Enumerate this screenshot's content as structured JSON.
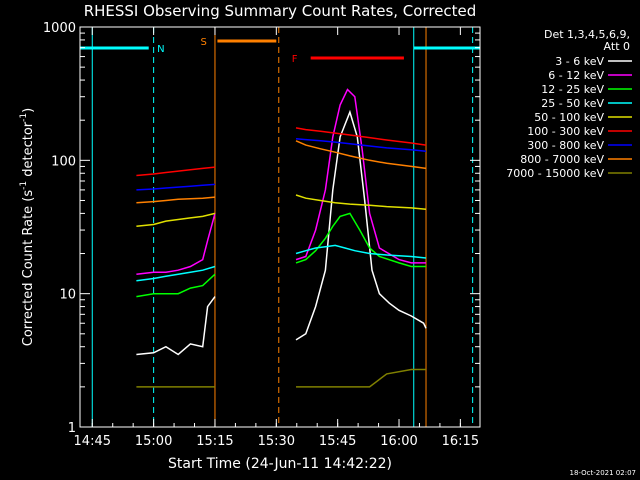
{
  "chart_data": {
    "type": "line",
    "title": "RHESSI Observing Summary Count Rates, Corrected",
    "xlabel": "Start Time (24-Jun-11 14:42:22)",
    "ylabel_main": "Corrected Count Rate (s",
    "ylabel_exp1": "-1",
    "ylabel_mid": " detector",
    "ylabel_exp2": "-1",
    "ylabel_end": ")",
    "yscale": "log",
    "ylim": [
      1,
      1000
    ],
    "xlim_minutes": [
      14.7,
      16.33
    ],
    "x_ticks": [
      {
        "t": 14.75,
        "label": "14:45"
      },
      {
        "t": 15.0,
        "label": "15:00"
      },
      {
        "t": 15.25,
        "label": "15:15"
      },
      {
        "t": 15.5,
        "label": "15:30"
      },
      {
        "t": 15.75,
        "label": "15:45"
      },
      {
        "t": 16.0,
        "label": "16:00"
      },
      {
        "t": 16.25,
        "label": "16:15"
      }
    ],
    "y_ticks": [
      {
        "v": 1,
        "label": "1"
      },
      {
        "v": 10,
        "label": "10"
      },
      {
        "v": 100,
        "label": "100"
      },
      {
        "v": 1000,
        "label": "1000"
      }
    ],
    "legend_header1": "Det 1,3,4,5,6,9,",
    "legend_header2": "Att 0",
    "legend_position": "right",
    "timestamp": "18-Oct-2021 02:07",
    "flags": [
      {
        "label": "N",
        "color": "#00ffff",
        "segments": [
          [
            14.7,
            14.98
          ],
          [
            16.06,
            16.33
          ]
        ]
      },
      {
        "label": "S",
        "color": "#ff8000",
        "segments": [
          [
            15.26,
            15.5
          ]
        ]
      },
      {
        "label": "F",
        "color": "#ff0000",
        "segments": [
          [
            15.64,
            16.02
          ]
        ]
      }
    ],
    "markers": [
      {
        "t": 14.75,
        "color": "#00ffff",
        "style": "solid"
      },
      {
        "t": 15.0,
        "color": "#00ffff",
        "style": "dashed"
      },
      {
        "t": 15.25,
        "color": "#ff8000",
        "style": "solid"
      },
      {
        "t": 15.51,
        "color": "#ff8000",
        "style": "dashed"
      },
      {
        "t": 16.06,
        "color": "#00ffff",
        "style": "solid"
      },
      {
        "t": 16.11,
        "color": "#ff8000",
        "style": "solid"
      },
      {
        "t": 16.3,
        "color": "#00ffff",
        "style": "dashed"
      }
    ],
    "series": [
      {
        "name": "3 - 6 keV",
        "color": "#ffffff",
        "segments": [
          [
            [
              14.93,
              3.5
            ],
            [
              15.0,
              3.6
            ],
            [
              15.05,
              4.0
            ],
            [
              15.1,
              3.5
            ],
            [
              15.15,
              4.2
            ],
            [
              15.2,
              4.0
            ],
            [
              15.22,
              8.0
            ],
            [
              15.25,
              9.5
            ]
          ],
          [
            [
              15.58,
              4.5
            ],
            [
              15.62,
              5.0
            ],
            [
              15.66,
              8.0
            ],
            [
              15.7,
              15.0
            ],
            [
              15.73,
              60.0
            ],
            [
              15.76,
              150.0
            ],
            [
              15.8,
              230.0
            ],
            [
              15.83,
              150.0
            ],
            [
              15.86,
              50.0
            ],
            [
              15.89,
              15.0
            ],
            [
              15.92,
              10.0
            ],
            [
              15.96,
              8.5
            ],
            [
              16.0,
              7.5
            ],
            [
              16.05,
              6.8
            ],
            [
              16.1,
              6.0
            ],
            [
              16.11,
              5.5
            ]
          ]
        ]
      },
      {
        "name": "6 - 12 keV",
        "color": "#ff00ff",
        "segments": [
          [
            [
              14.93,
              14.0
            ],
            [
              15.0,
              14.5
            ],
            [
              15.05,
              14.5
            ],
            [
              15.1,
              15.0
            ],
            [
              15.15,
              16.0
            ],
            [
              15.2,
              18.0
            ],
            [
              15.22,
              25.0
            ],
            [
              15.25,
              40.0
            ]
          ],
          [
            [
              15.58,
              18.0
            ],
            [
              15.62,
              19.0
            ],
            [
              15.66,
              30.0
            ],
            [
              15.7,
              60.0
            ],
            [
              15.73,
              150.0
            ],
            [
              15.76,
              260.0
            ],
            [
              15.79,
              340.0
            ],
            [
              15.82,
              300.0
            ],
            [
              15.85,
              120.0
            ],
            [
              15.88,
              40.0
            ],
            [
              15.92,
              22.0
            ],
            [
              16.0,
              18.0
            ],
            [
              16.05,
              17.0
            ],
            [
              16.11,
              17.0
            ]
          ]
        ]
      },
      {
        "name": "12 - 25 keV",
        "color": "#00ff00",
        "segments": [
          [
            [
              14.93,
              9.5
            ],
            [
              15.0,
              10.0
            ],
            [
              15.05,
              10.0
            ],
            [
              15.1,
              10.0
            ],
            [
              15.15,
              11.0
            ],
            [
              15.2,
              11.5
            ],
            [
              15.25,
              14.0
            ]
          ],
          [
            [
              15.58,
              17.0
            ],
            [
              15.62,
              18.0
            ],
            [
              15.66,
              21.0
            ],
            [
              15.7,
              26.0
            ],
            [
              15.73,
              32.0
            ],
            [
              15.76,
              38.0
            ],
            [
              15.8,
              40.0
            ],
            [
              15.84,
              30.0
            ],
            [
              15.88,
              22.0
            ],
            [
              15.92,
              19.0
            ],
            [
              16.0,
              17.0
            ],
            [
              16.05,
              16.0
            ],
            [
              16.11,
              16.0
            ]
          ]
        ]
      },
      {
        "name": "25 - 50 keV",
        "color": "#00ffff",
        "segments": [
          [
            [
              14.93,
              12.5
            ],
            [
              15.0,
              13.0
            ],
            [
              15.05,
              13.5
            ],
            [
              15.1,
              14.0
            ],
            [
              15.15,
              14.5
            ],
            [
              15.2,
              15.0
            ],
            [
              15.25,
              16.0
            ]
          ],
          [
            [
              15.58,
              20.0
            ],
            [
              15.62,
              21.0
            ],
            [
              15.66,
              22.0
            ],
            [
              15.7,
              22.5
            ],
            [
              15.74,
              23.0
            ],
            [
              15.78,
              22.0
            ],
            [
              15.82,
              21.0
            ],
            [
              15.88,
              20.0
            ],
            [
              15.95,
              19.5
            ],
            [
              16.05,
              19.0
            ],
            [
              16.11,
              18.5
            ]
          ]
        ]
      },
      {
        "name": "50 - 100 keV",
        "color": "#e0e000",
        "segments": [
          [
            [
              14.93,
              32.0
            ],
            [
              15.0,
              33.0
            ],
            [
              15.05,
              35.0
            ],
            [
              15.1,
              36.0
            ],
            [
              15.15,
              37.0
            ],
            [
              15.2,
              38.0
            ],
            [
              15.25,
              40.0
            ]
          ],
          [
            [
              15.58,
              55.0
            ],
            [
              15.62,
              52.0
            ],
            [
              15.68,
              50.0
            ],
            [
              15.74,
              48.0
            ],
            [
              15.8,
              47.0
            ],
            [
              15.88,
              46.0
            ],
            [
              15.95,
              45.0
            ],
            [
              16.05,
              44.0
            ],
            [
              16.11,
              43.0
            ]
          ]
        ]
      },
      {
        "name": "100 - 300 keV",
        "color": "#ff0000",
        "segments": [
          [
            [
              14.93,
              77.0
            ],
            [
              15.0,
              79.0
            ],
            [
              15.05,
              81.0
            ],
            [
              15.1,
              83.0
            ],
            [
              15.15,
              85.0
            ],
            [
              15.2,
              87.0
            ],
            [
              15.25,
              89.0
            ]
          ],
          [
            [
              15.58,
              175.0
            ],
            [
              15.62,
              170.0
            ],
            [
              15.68,
              165.0
            ],
            [
              15.74,
              160.0
            ],
            [
              15.8,
              155.0
            ],
            [
              15.88,
              148.0
            ],
            [
              15.95,
              142.0
            ],
            [
              16.05,
              135.0
            ],
            [
              16.11,
              130.0
            ]
          ]
        ]
      },
      {
        "name": "300 - 800 keV",
        "color": "#0000ff",
        "segments": [
          [
            [
              14.93,
              60.0
            ],
            [
              15.0,
              61.0
            ],
            [
              15.05,
              62.0
            ],
            [
              15.1,
              63.0
            ],
            [
              15.15,
              64.0
            ],
            [
              15.2,
              65.0
            ],
            [
              15.25,
              66.0
            ]
          ],
          [
            [
              15.58,
              145.0
            ],
            [
              15.62,
              143.0
            ],
            [
              15.68,
              140.0
            ],
            [
              15.74,
              137.0
            ],
            [
              15.8,
              133.0
            ],
            [
              15.88,
              128.0
            ],
            [
              15.95,
              124.0
            ],
            [
              16.05,
              120.0
            ],
            [
              16.11,
              117.0
            ]
          ]
        ]
      },
      {
        "name": "800 - 7000 keV",
        "color": "#ff8000",
        "segments": [
          [
            [
              14.93,
              48.0
            ],
            [
              15.0,
              49.0
            ],
            [
              15.05,
              50.0
            ],
            [
              15.1,
              51.0
            ],
            [
              15.15,
              51.5
            ],
            [
              15.2,
              52.0
            ],
            [
              15.25,
              53.0
            ]
          ],
          [
            [
              15.58,
              140.0
            ],
            [
              15.62,
              130.0
            ],
            [
              15.68,
              122.0
            ],
            [
              15.74,
              115.0
            ],
            [
              15.8,
              108.0
            ],
            [
              15.88,
              100.0
            ],
            [
              15.95,
              95.0
            ],
            [
              16.05,
              90.0
            ],
            [
              16.11,
              87.0
            ]
          ]
        ]
      },
      {
        "name": "7000 - 15000 keV",
        "color": "#808000",
        "segments": [
          [
            [
              14.93,
              2.0
            ],
            [
              15.0,
              2.0
            ],
            [
              15.05,
              2.0
            ],
            [
              15.1,
              2.0
            ],
            [
              15.15,
              2.0
            ],
            [
              15.2,
              2.0
            ],
            [
              15.25,
              2.0
            ]
          ],
          [
            [
              15.58,
              2.0
            ],
            [
              15.62,
              2.0
            ],
            [
              15.68,
              2.0
            ],
            [
              15.74,
              2.0
            ],
            [
              15.8,
              2.0
            ],
            [
              15.88,
              2.0
            ],
            [
              15.95,
              2.5
            ],
            [
              16.05,
              2.7
            ],
            [
              16.11,
              2.7
            ]
          ]
        ]
      }
    ]
  }
}
